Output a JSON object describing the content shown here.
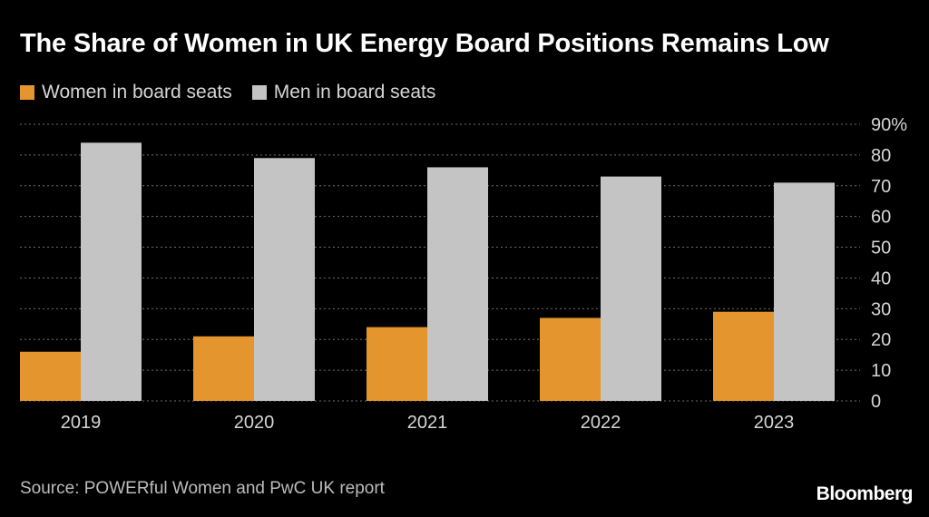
{
  "chart_data": {
    "type": "bar",
    "title": "The Share of Women in UK Energy Board Positions Remains Low",
    "categories": [
      "2019",
      "2020",
      "2021",
      "2022",
      "2023"
    ],
    "series": [
      {
        "name": "Women in board seats",
        "color": "#e5952d",
        "values": [
          16,
          21,
          24,
          27,
          29
        ]
      },
      {
        "name": "Men in board seats",
        "color": "#c4c4c4",
        "values": [
          84,
          79,
          76,
          73,
          71
        ]
      }
    ],
    "ylim": [
      0,
      90
    ],
    "yticks": [
      "0",
      "10",
      "20",
      "30",
      "40",
      "50",
      "60",
      "70",
      "80",
      "90%"
    ],
    "ytick_values": [
      0,
      10,
      20,
      30,
      40,
      50,
      60,
      70,
      80,
      90
    ],
    "grid": true,
    "legend_position": "top-left"
  },
  "footer": {
    "source": "Source: POWERful Women and PwC UK report",
    "brand": "Bloomberg"
  }
}
